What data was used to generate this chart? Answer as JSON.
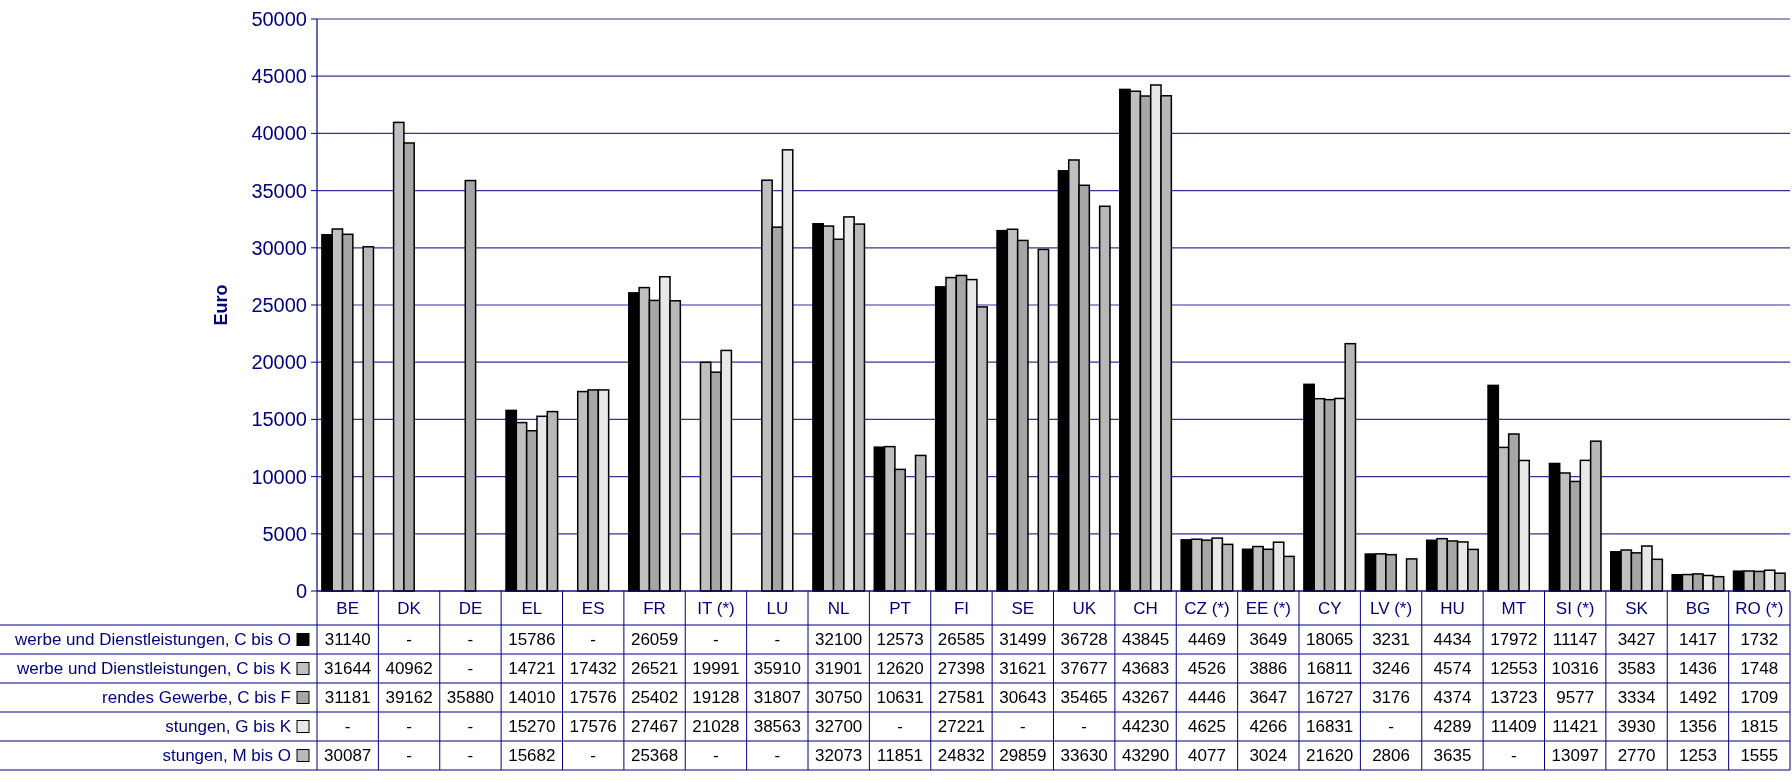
{
  "chart_data": {
    "type": "bar",
    "ylabel": "Euro",
    "categories": [
      "BE",
      "DK",
      "DE",
      "EL",
      "ES",
      "FR",
      "IT (*)",
      "LU",
      "NL",
      "PT",
      "FI",
      "SE",
      "UK",
      "CH",
      "CZ (*)",
      "EE (*)",
      "CY",
      "LV (*)",
      "HU",
      "MT",
      "SI (*)",
      "SK",
      "BG",
      "RO (*)"
    ],
    "ylim": [
      0,
      50000
    ],
    "yticks": [
      0,
      5000,
      10000,
      15000,
      20000,
      25000,
      30000,
      35000,
      40000,
      45000,
      50000
    ],
    "grid": "y",
    "legend": "bottom",
    "series": [
      {
        "name": "werbe und Dienstleistungen, C bis O",
        "color": "#000000",
        "values": [
          31140,
          null,
          null,
          15786,
          null,
          26059,
          null,
          null,
          32100,
          12573,
          26585,
          31499,
          36728,
          43845,
          4469,
          3649,
          18065,
          3231,
          4434,
          17972,
          11147,
          3427,
          1417,
          1732
        ],
        "value_labels": [
          "31140",
          "-",
          "-",
          "15786",
          "-",
          "26059",
          "-",
          "-",
          "32100",
          "12573",
          "26585",
          "31499",
          "36728",
          "43845",
          "4469",
          "3649",
          "18065",
          "3231",
          "4434",
          "17972",
          "11147",
          "3427",
          "1417",
          "1732"
        ]
      },
      {
        "name": "werbe und Dienstleistungen, C bis K",
        "color": "#c0c0c0",
        "values": [
          31644,
          40962,
          null,
          14721,
          17432,
          26521,
          19991,
          35910,
          31901,
          12620,
          27398,
          31621,
          37677,
          43683,
          4526,
          3886,
          16811,
          3246,
          4574,
          12553,
          10316,
          3583,
          1436,
          1748
        ],
        "value_labels": [
          "31644",
          "40962",
          "-",
          "14721",
          "17432",
          "26521",
          "19991",
          "35910",
          "31901",
          "12620",
          "27398",
          "31621",
          "37677",
          "43683",
          "4526",
          "3886",
          "16811",
          "3246",
          "4574",
          "12553",
          "10316",
          "3583",
          "1436",
          "1748"
        ]
      },
      {
        "name": "rendes Gewerbe, C bis F",
        "color": "#a6a6a6",
        "values": [
          31181,
          39162,
          35880,
          14010,
          17576,
          25402,
          19128,
          31807,
          30750,
          10631,
          27581,
          30643,
          35465,
          43267,
          4446,
          3647,
          16727,
          3176,
          4374,
          13723,
          9577,
          3334,
          1492,
          1709
        ],
        "value_labels": [
          "31181",
          "39162",
          "35880",
          "14010",
          "17576",
          "25402",
          "19128",
          "31807",
          "30750",
          "10631",
          "27581",
          "30643",
          "35465",
          "43267",
          "4446",
          "3647",
          "16727",
          "3176",
          "4374",
          "13723",
          "9577",
          "3334",
          "1492",
          "1709"
        ]
      },
      {
        "name": "stungen, G bis K",
        "color": "#e8e8e8",
        "values": [
          null,
          null,
          null,
          15270,
          17576,
          27467,
          21028,
          38563,
          32700,
          null,
          27221,
          null,
          null,
          44230,
          4625,
          4266,
          16831,
          null,
          4289,
          11409,
          11421,
          3930,
          1356,
          1815
        ],
        "value_labels": [
          "-",
          "-",
          "-",
          "15270",
          "17576",
          "27467",
          "21028",
          "38563",
          "32700",
          "-",
          "27221",
          "-",
          "-",
          "44230",
          "4625",
          "4266",
          "16831",
          "-",
          "4289",
          "11409",
          "11421",
          "3930",
          "1356",
          "1815"
        ]
      },
      {
        "name": "stungen, M bis O",
        "color": "#b8b8b8",
        "values": [
          30087,
          null,
          null,
          15682,
          null,
          25368,
          null,
          null,
          32073,
          11851,
          24832,
          29859,
          33630,
          43290,
          4077,
          3024,
          21620,
          2806,
          3635,
          null,
          13097,
          2770,
          1253,
          1555
        ],
        "value_labels": [
          "30087",
          "-",
          "-",
          "15682",
          "-",
          "25368",
          "-",
          "-",
          "32073",
          "11851",
          "24832",
          "29859",
          "33630",
          "43290",
          "4077",
          "3024",
          "21620",
          "2806",
          "3635",
          "-",
          "13097",
          "2770",
          "1253",
          "1555"
        ]
      }
    ]
  }
}
